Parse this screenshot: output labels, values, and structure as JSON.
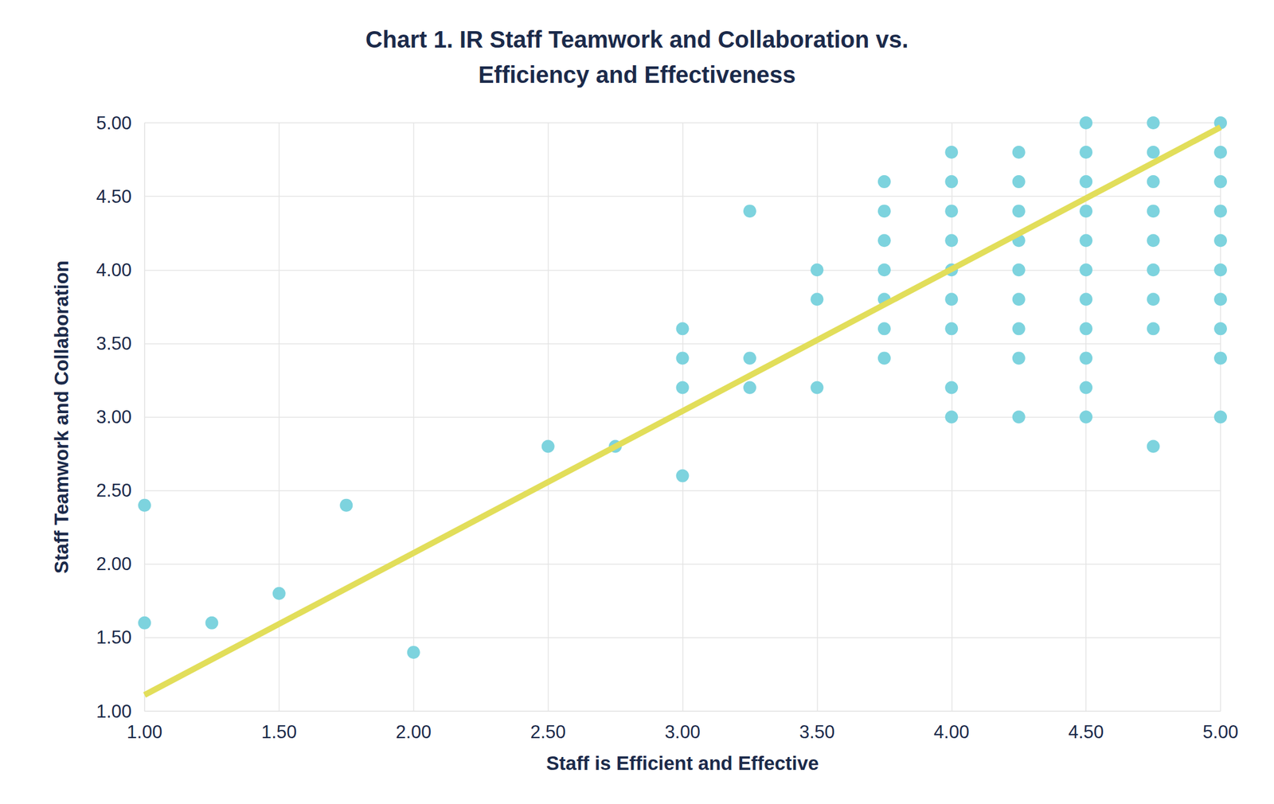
{
  "chart_data": {
    "type": "scatter",
    "title": "Chart 1. IR Staff Teamwork and Collaboration vs.\nEfficiency and Effectiveness",
    "x_label": "Staff is Efficient and Effective",
    "y_label": "Staff Teamwork and Collaboration",
    "grid": true,
    "xlim": [
      1,
      5
    ],
    "ylim": [
      1,
      5
    ],
    "xticks": [
      {
        "value": 1,
        "label": "1.00"
      },
      {
        "value": 1.5,
        "label": "1.50"
      },
      {
        "value": 2,
        "label": "2.00"
      },
      {
        "value": 2.5,
        "label": "2.50"
      },
      {
        "value": 3,
        "label": "3.00"
      },
      {
        "value": 3.5,
        "label": "3.50"
      },
      {
        "value": 4,
        "label": "4.00"
      },
      {
        "value": 4.5,
        "label": "4.50"
      },
      {
        "value": 5,
        "label": "5.00"
      }
    ],
    "yticks": [
      {
        "value": 1,
        "label": "1.00"
      },
      {
        "value": 1.5,
        "label": "1.50"
      },
      {
        "value": 2,
        "label": "2.00"
      },
      {
        "value": 2.5,
        "label": "2.50"
      },
      {
        "value": 3,
        "label": "3.00"
      },
      {
        "value": 3.5,
        "label": "3.50"
      },
      {
        "value": 4,
        "label": "4.00"
      },
      {
        "value": 4.5,
        "label": "4.50"
      },
      {
        "value": 5,
        "label": "5.00"
      }
    ],
    "series": [
      {
        "type": "scatter",
        "color": "#7dd3de",
        "marker": "circle",
        "x": [
          1,
          1,
          1.25,
          1.5,
          1.75,
          2,
          2.5,
          2.75,
          3,
          3,
          3,
          3,
          3.25,
          3.25,
          3.25,
          3.5,
          3.5,
          3.5,
          3.75,
          3.75,
          3.75,
          3.75,
          3.75,
          3.75,
          3.75,
          4,
          4,
          4,
          4,
          4,
          4,
          4,
          4,
          4,
          4.25,
          4.25,
          4.25,
          4.25,
          4.25,
          4.25,
          4.25,
          4.25,
          4.25,
          4.5,
          4.5,
          4.5,
          4.5,
          4.5,
          4.5,
          4.5,
          4.5,
          4.5,
          4.5,
          4.5,
          4.75,
          4.75,
          4.75,
          4.75,
          4.75,
          4.75,
          4.75,
          4.75,
          4.75,
          5,
          5,
          5,
          5,
          5,
          5,
          5,
          5,
          5,
          5
        ],
        "values": [
          2.4,
          1.6,
          1.6,
          1.8,
          2.4,
          1.4,
          2.8,
          2.8,
          3.6,
          3.4,
          3.2,
          2.6,
          4.4,
          3.4,
          3.2,
          4.0,
          3.8,
          3.2,
          4.6,
          4.4,
          4.2,
          4.0,
          3.8,
          3.6,
          3.4,
          4.8,
          4.6,
          4.4,
          4.2,
          4.0,
          3.8,
          3.6,
          3.2,
          3.0,
          4.8,
          4.6,
          4.4,
          4.2,
          4.0,
          3.8,
          3.6,
          3.4,
          3.0,
          5.0,
          4.8,
          4.6,
          4.4,
          4.2,
          4.0,
          3.8,
          3.6,
          3.4,
          3.2,
          3.0,
          5.0,
          4.8,
          4.6,
          4.4,
          4.2,
          4.0,
          3.8,
          3.6,
          2.8,
          5.0,
          4.8,
          4.6,
          4.4,
          4.2,
          4.0,
          3.8,
          3.6,
          3.4,
          3.0
        ]
      },
      {
        "type": "line",
        "color": "#e2de5a",
        "line_style": "solid",
        "x": [
          1,
          5
        ],
        "values": [
          1.11,
          4.97
        ]
      }
    ]
  }
}
